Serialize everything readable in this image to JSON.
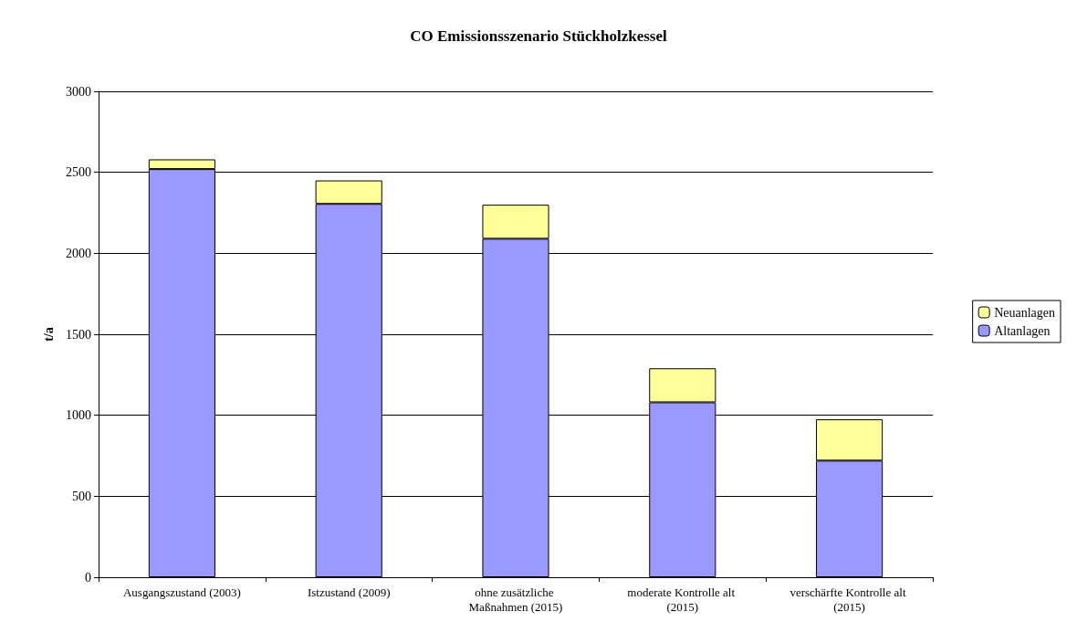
{
  "chart_data": {
    "type": "bar",
    "title": "CO Emissionsszenario Stückholzkessel",
    "ylabel": "t/a",
    "categories": [
      "Ausgangszustand (2003)",
      "Istzustand (2009)",
      "ohne zusätzliche Maßnahmen (2015)",
      "moderate Kontrolle alt (2015)",
      "verschärfte Kontrolle alt (2015)"
    ],
    "stacked": true,
    "series": [
      {
        "name": "Altanlagen",
        "color": "#9999ff",
        "values": [
          2520,
          2305,
          2090,
          1080,
          720
        ]
      },
      {
        "name": "Neuanlagen",
        "color": "#ffff99",
        "values": [
          60,
          145,
          210,
          210,
          255
        ]
      }
    ],
    "ylim": [
      0,
      3000
    ],
    "yticks": [
      0,
      500,
      1000,
      1500,
      2000,
      2500,
      3000
    ],
    "grid": "y",
    "legend": "right"
  }
}
